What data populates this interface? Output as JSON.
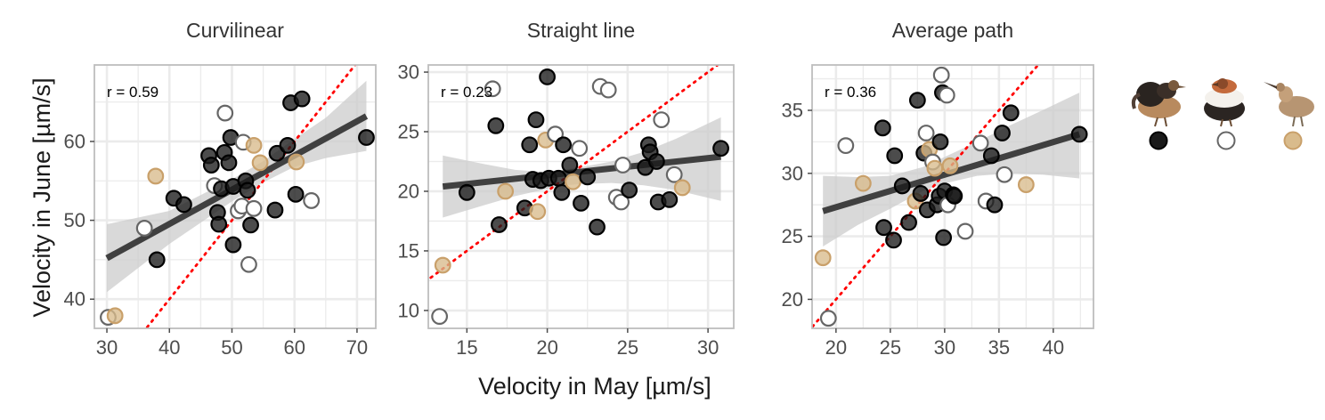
{
  "figure": {
    "ylabel": "Velocity in June [µm/s]",
    "xlabel": "Velocity in May [µm/s]"
  },
  "legend": {
    "groups": [
      {
        "key": "black",
        "icon": "dark-ruff-icon",
        "fill": "#1a1a1a",
        "stroke": "#000000"
      },
      {
        "key": "white",
        "icon": "white-ruff-icon",
        "fill": "#ffffff",
        "stroke": "#666666"
      },
      {
        "key": "tan",
        "icon": "faeder-bird-icon",
        "fill": "#d9bb8c",
        "stroke": "#c9a06a"
      }
    ]
  },
  "colors": {
    "band": "#cccccc",
    "fit_line": "#404040",
    "identity_line": "#ff0000",
    "grid": "#ebebeb",
    "panel_border": "#bdbdbd"
  },
  "chart_data": [
    {
      "type": "scatter",
      "title": "Curvilinear",
      "annotation": "r = 0.59",
      "xlim": [
        28,
        73
      ],
      "ylim": [
        36.3,
        69.7
      ],
      "xticks": [
        30,
        40,
        50,
        60,
        70
      ],
      "yticks": [
        40,
        50,
        60
      ],
      "fit": {
        "x": [
          30,
          71.5
        ],
        "y": [
          45.2,
          63.2
        ]
      },
      "band": {
        "x": [
          30,
          40,
          50,
          55,
          60,
          65,
          71.5
        ],
        "lower": [
          40.9,
          47.0,
          52.4,
          54.8,
          56.8,
          57.9,
          58.8
        ],
        "upper": [
          49.5,
          51.2,
          55.2,
          57.5,
          60.3,
          63.0,
          67.7
        ]
      },
      "points": [
        {
          "x": 30.2,
          "y": 37.7,
          "g": "white"
        },
        {
          "x": 31.3,
          "y": 37.9,
          "g": "tan"
        },
        {
          "x": 36.0,
          "y": 49.0,
          "g": "white"
        },
        {
          "x": 37.8,
          "y": 55.6,
          "g": "tan"
        },
        {
          "x": 38.0,
          "y": 45.0,
          "g": "black"
        },
        {
          "x": 40.7,
          "y": 52.8,
          "g": "black"
        },
        {
          "x": 42.3,
          "y": 52.0,
          "g": "black"
        },
        {
          "x": 46.3,
          "y": 58.2,
          "g": "black"
        },
        {
          "x": 46.7,
          "y": 57.0,
          "g": "black"
        },
        {
          "x": 47.2,
          "y": 54.4,
          "g": "white"
        },
        {
          "x": 47.7,
          "y": 51.0,
          "g": "black"
        },
        {
          "x": 47.9,
          "y": 49.5,
          "g": "black"
        },
        {
          "x": 48.3,
          "y": 54.0,
          "g": "black"
        },
        {
          "x": 48.8,
          "y": 58.6,
          "g": "black"
        },
        {
          "x": 48.9,
          "y": 63.6,
          "g": "white"
        },
        {
          "x": 49.5,
          "y": 57.3,
          "g": "black"
        },
        {
          "x": 49.8,
          "y": 60.5,
          "g": "black"
        },
        {
          "x": 50.2,
          "y": 54.3,
          "g": "black"
        },
        {
          "x": 50.2,
          "y": 46.9,
          "g": "black"
        },
        {
          "x": 51.0,
          "y": 51.2,
          "g": "white"
        },
        {
          "x": 51.6,
          "y": 51.8,
          "g": "white"
        },
        {
          "x": 51.8,
          "y": 59.9,
          "g": "white"
        },
        {
          "x": 52.2,
          "y": 55.0,
          "g": "black"
        },
        {
          "x": 52.5,
          "y": 53.8,
          "g": "black"
        },
        {
          "x": 52.7,
          "y": 44.4,
          "g": "white"
        },
        {
          "x": 53.0,
          "y": 49.4,
          "g": "black"
        },
        {
          "x": 53.5,
          "y": 59.5,
          "g": "tan"
        },
        {
          "x": 53.5,
          "y": 51.5,
          "g": "white"
        },
        {
          "x": 54.5,
          "y": 57.3,
          "g": "tan"
        },
        {
          "x": 56.9,
          "y": 51.3,
          "g": "black"
        },
        {
          "x": 57.2,
          "y": 58.5,
          "g": "black"
        },
        {
          "x": 58.9,
          "y": 59.5,
          "g": "black"
        },
        {
          "x": 59.4,
          "y": 64.9,
          "g": "black"
        },
        {
          "x": 60.2,
          "y": 53.3,
          "g": "black"
        },
        {
          "x": 60.3,
          "y": 57.4,
          "g": "tan"
        },
        {
          "x": 61.2,
          "y": 65.4,
          "g": "black"
        },
        {
          "x": 62.7,
          "y": 52.5,
          "g": "white"
        },
        {
          "x": 71.5,
          "y": 60.5,
          "g": "black"
        }
      ]
    },
    {
      "type": "scatter",
      "title": "Straight line",
      "annotation": "r = 0.23",
      "xlim": [
        12.6,
        31.6
      ],
      "ylim": [
        8.5,
        30.6
      ],
      "xticks": [
        15,
        20,
        25,
        30
      ],
      "yticks": [
        10,
        15,
        20,
        25,
        30
      ],
      "fit": {
        "x": [
          13.5,
          30.8
        ],
        "y": [
          20.4,
          22.9
        ]
      },
      "band": {
        "x": [
          13.5,
          16,
          18,
          20,
          21,
          22,
          24,
          26,
          28,
          30.8
        ],
        "lower": [
          17.8,
          18.8,
          19.6,
          20.2,
          20.5,
          20.6,
          20.7,
          20.5,
          20.1,
          19.2
        ],
        "upper": [
          23.0,
          22.3,
          21.8,
          21.6,
          21.8,
          22.0,
          22.5,
          23.3,
          24.4,
          26.2
        ]
      },
      "points": [
        {
          "x": 13.3,
          "y": 9.5,
          "g": "white"
        },
        {
          "x": 13.5,
          "y": 13.8,
          "g": "tan"
        },
        {
          "x": 15.0,
          "y": 19.9,
          "g": "black"
        },
        {
          "x": 16.6,
          "y": 28.6,
          "g": "white"
        },
        {
          "x": 16.8,
          "y": 25.5,
          "g": "black"
        },
        {
          "x": 17.0,
          "y": 17.2,
          "g": "black"
        },
        {
          "x": 17.4,
          "y": 20.0,
          "g": "tan"
        },
        {
          "x": 18.6,
          "y": 18.6,
          "g": "black"
        },
        {
          "x": 18.9,
          "y": 23.9,
          "g": "black"
        },
        {
          "x": 19.1,
          "y": 21.0,
          "g": "black"
        },
        {
          "x": 19.3,
          "y": 26.0,
          "g": "black"
        },
        {
          "x": 19.4,
          "y": 18.3,
          "g": "tan"
        },
        {
          "x": 19.6,
          "y": 20.9,
          "g": "black"
        },
        {
          "x": 19.9,
          "y": 24.3,
          "g": "tan"
        },
        {
          "x": 20.0,
          "y": 29.6,
          "g": "black"
        },
        {
          "x": 20.1,
          "y": 21.1,
          "g": "black"
        },
        {
          "x": 20.5,
          "y": 24.8,
          "g": "white"
        },
        {
          "x": 20.7,
          "y": 21.1,
          "g": "black"
        },
        {
          "x": 20.9,
          "y": 19.9,
          "g": "black"
        },
        {
          "x": 21.0,
          "y": 23.9,
          "g": "black"
        },
        {
          "x": 21.4,
          "y": 22.2,
          "g": "black"
        },
        {
          "x": 21.6,
          "y": 20.8,
          "g": "tan"
        },
        {
          "x": 22.0,
          "y": 23.6,
          "g": "white"
        },
        {
          "x": 22.1,
          "y": 19.0,
          "g": "black"
        },
        {
          "x": 22.5,
          "y": 21.2,
          "g": "black"
        },
        {
          "x": 23.1,
          "y": 17.0,
          "g": "black"
        },
        {
          "x": 23.3,
          "y": 28.8,
          "g": "white"
        },
        {
          "x": 23.8,
          "y": 28.5,
          "g": "white"
        },
        {
          "x": 24.3,
          "y": 19.5,
          "g": "white"
        },
        {
          "x": 24.6,
          "y": 19.1,
          "g": "white"
        },
        {
          "x": 24.7,
          "y": 22.2,
          "g": "white"
        },
        {
          "x": 25.1,
          "y": 20.1,
          "g": "black"
        },
        {
          "x": 26.1,
          "y": 22.0,
          "g": "black"
        },
        {
          "x": 26.3,
          "y": 23.9,
          "g": "black"
        },
        {
          "x": 26.4,
          "y": 23.3,
          "g": "black"
        },
        {
          "x": 26.8,
          "y": 22.5,
          "g": "black"
        },
        {
          "x": 26.9,
          "y": 19.1,
          "g": "black"
        },
        {
          "x": 27.1,
          "y": 26.0,
          "g": "white"
        },
        {
          "x": 27.6,
          "y": 19.3,
          "g": "black"
        },
        {
          "x": 27.9,
          "y": 21.4,
          "g": "white"
        },
        {
          "x": 28.4,
          "y": 20.3,
          "g": "tan"
        },
        {
          "x": 30.8,
          "y": 23.6,
          "g": "black"
        }
      ]
    },
    {
      "type": "scatter",
      "title": "Average path",
      "annotation": "r = 0.36",
      "xlim": [
        17.8,
        43.7
      ],
      "ylim": [
        17.7,
        38.6
      ],
      "xticks": [
        20,
        25,
        30,
        35,
        40
      ],
      "yticks": [
        20,
        25,
        30,
        35
      ],
      "fit": {
        "x": [
          18.8,
          42.4
        ],
        "y": [
          27.0,
          33.1
        ]
      },
      "band": {
        "x": [
          18.8,
          22,
          25,
          28,
          30,
          33,
          36,
          39,
          42.4
        ],
        "lower": [
          24.2,
          25.9,
          27.2,
          28.6,
          29.2,
          29.8,
          30.0,
          29.9,
          29.6
        ],
        "upper": [
          29.8,
          29.7,
          29.8,
          30.5,
          31.3,
          32.5,
          33.8,
          35.0,
          36.4
        ]
      },
      "points": [
        {
          "x": 18.8,
          "y": 23.3,
          "g": "tan"
        },
        {
          "x": 19.3,
          "y": 18.5,
          "g": "white"
        },
        {
          "x": 20.9,
          "y": 32.2,
          "g": "white"
        },
        {
          "x": 22.5,
          "y": 29.2,
          "g": "tan"
        },
        {
          "x": 24.3,
          "y": 33.6,
          "g": "black"
        },
        {
          "x": 24.4,
          "y": 25.7,
          "g": "black"
        },
        {
          "x": 25.3,
          "y": 24.7,
          "g": "black"
        },
        {
          "x": 25.4,
          "y": 31.4,
          "g": "black"
        },
        {
          "x": 26.1,
          "y": 29.0,
          "g": "black"
        },
        {
          "x": 26.7,
          "y": 26.1,
          "g": "black"
        },
        {
          "x": 27.3,
          "y": 27.8,
          "g": "tan"
        },
        {
          "x": 27.5,
          "y": 35.8,
          "g": "black"
        },
        {
          "x": 27.8,
          "y": 28.4,
          "g": "black"
        },
        {
          "x": 28.1,
          "y": 31.6,
          "g": "black"
        },
        {
          "x": 28.3,
          "y": 33.2,
          "g": "white"
        },
        {
          "x": 28.4,
          "y": 27.1,
          "g": "black"
        },
        {
          "x": 28.6,
          "y": 31.9,
          "g": "tan"
        },
        {
          "x": 28.9,
          "y": 30.9,
          "g": "white"
        },
        {
          "x": 29.1,
          "y": 30.4,
          "g": "tan"
        },
        {
          "x": 29.3,
          "y": 27.5,
          "g": "black"
        },
        {
          "x": 29.5,
          "y": 28.2,
          "g": "black"
        },
        {
          "x": 29.6,
          "y": 32.5,
          "g": "black"
        },
        {
          "x": 29.7,
          "y": 37.8,
          "g": "white"
        },
        {
          "x": 29.8,
          "y": 36.4,
          "g": "black"
        },
        {
          "x": 29.9,
          "y": 24.9,
          "g": "black"
        },
        {
          "x": 30.0,
          "y": 28.6,
          "g": "black"
        },
        {
          "x": 30.2,
          "y": 36.2,
          "g": "white"
        },
        {
          "x": 30.3,
          "y": 27.5,
          "g": "white"
        },
        {
          "x": 30.5,
          "y": 30.6,
          "g": "tan"
        },
        {
          "x": 30.8,
          "y": 28.3,
          "g": "black"
        },
        {
          "x": 30.9,
          "y": 28.2,
          "g": "black"
        },
        {
          "x": 31.9,
          "y": 25.4,
          "g": "white"
        },
        {
          "x": 33.3,
          "y": 32.4,
          "g": "white"
        },
        {
          "x": 33.8,
          "y": 27.8,
          "g": "white"
        },
        {
          "x": 34.3,
          "y": 31.4,
          "g": "black"
        },
        {
          "x": 34.6,
          "y": 27.5,
          "g": "black"
        },
        {
          "x": 35.3,
          "y": 33.2,
          "g": "black"
        },
        {
          "x": 35.5,
          "y": 29.9,
          "g": "white"
        },
        {
          "x": 36.1,
          "y": 34.8,
          "g": "black"
        },
        {
          "x": 37.5,
          "y": 29.1,
          "g": "tan"
        },
        {
          "x": 42.4,
          "y": 33.1,
          "g": "black"
        }
      ]
    }
  ]
}
